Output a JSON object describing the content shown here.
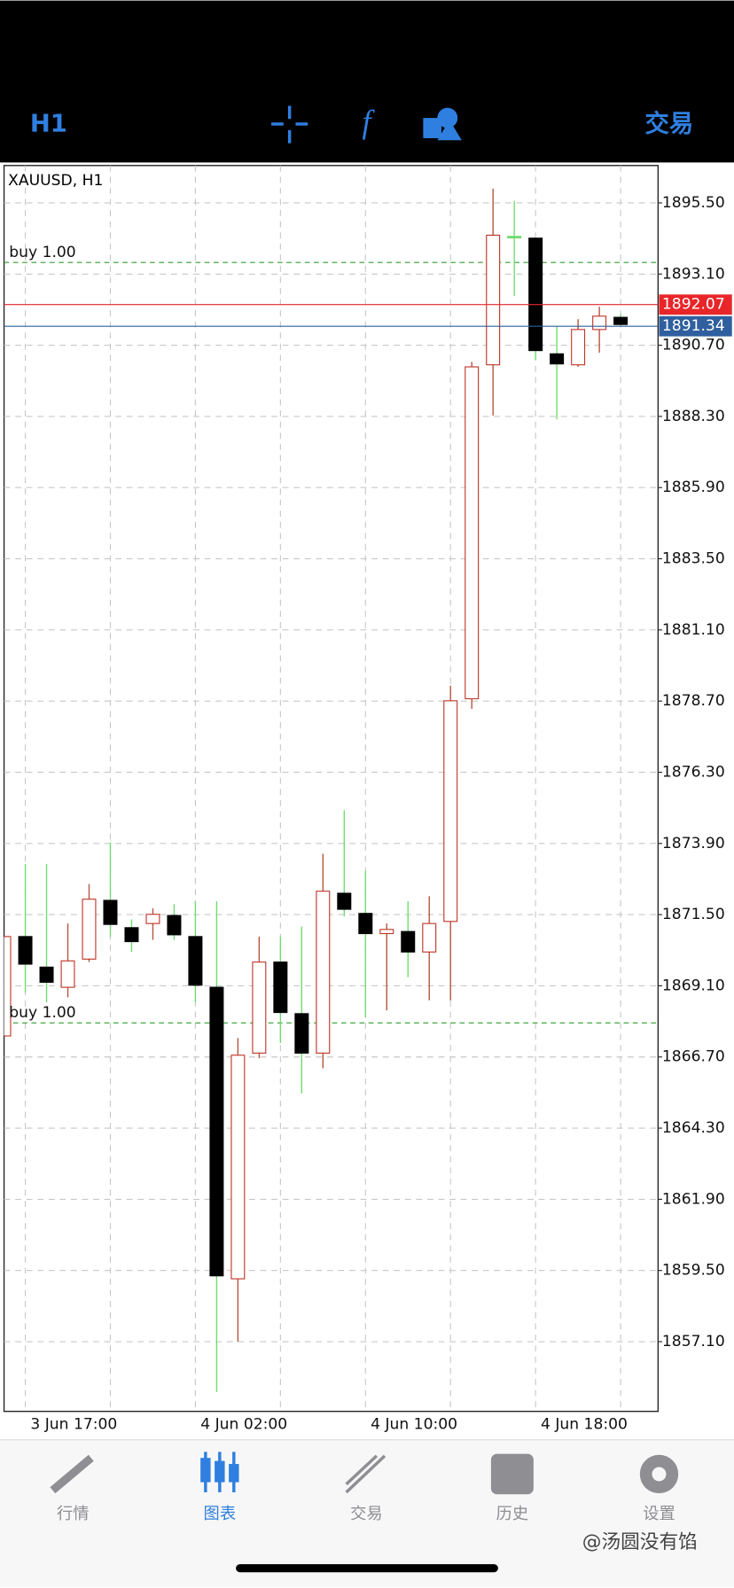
{
  "toolbar": {
    "timeframe": "H1",
    "trade": "交易"
  },
  "chart_data": {
    "type": "candlestick",
    "title": "XAUUSD, H1",
    "categories": [
      null,
      "3 Jun 17:00",
      null,
      null,
      null,
      null,
      null,
      null,
      null,
      "4 Jun 02:00",
      null,
      null,
      null,
      null,
      null,
      null,
      null,
      "4 Jun 10:00",
      null,
      null,
      null,
      null,
      null,
      null,
      null,
      "4 Jun 18:00",
      null,
      null,
      null,
      null
    ],
    "open": [
      1867.41,
      1870.76,
      1869.73,
      1869.05,
      1870.0,
      1871.98,
      1871.06,
      1871.2,
      1871.47,
      1870.76,
      1869.05,
      1859.22,
      1866.83,
      1869.9,
      1868.16,
      1866.83,
      1872.22,
      1871.54,
      1870.86,
      1870.93,
      1870.24,
      1871.27,
      1878.78,
      1890.04,
      1894.37,
      1894.31,
      1890.41,
      1890.04,
      1891.23,
      1891.64
    ],
    "high": [
      1870.76,
      1873.21,
      1873.21,
      1871.2,
      1872.53,
      1873.93,
      1871.34,
      1871.71,
      1871.85,
      1871.95,
      1871.95,
      1867.34,
      1870.76,
      1870.76,
      1871.1,
      1873.55,
      1875.02,
      1872.97,
      1871.2,
      1871.95,
      1872.12,
      1879.22,
      1890.14,
      1895.98,
      1895.57,
      1894.31,
      1891.34,
      1891.58,
      1892.0,
      1891.75
    ],
    "low": [
      1867.41,
      1868.88,
      1868.54,
      1868.71,
      1869.9,
      1870.76,
      1870.24,
      1870.65,
      1870.65,
      1868.54,
      1855.4,
      1857.1,
      1866.66,
      1867.17,
      1865.47,
      1866.32,
      1871.44,
      1868.03,
      1868.27,
      1869.39,
      1868.61,
      1868.61,
      1878.44,
      1888.33,
      1892.36,
      1890.21,
      1888.2,
      1889.97,
      1890.45,
      1891.34
    ],
    "close": [
      1870.76,
      1869.83,
      1869.22,
      1869.94,
      1872.02,
      1871.17,
      1870.59,
      1871.51,
      1870.82,
      1869.12,
      1859.32,
      1866.76,
      1869.9,
      1868.2,
      1866.83,
      1872.29,
      1871.68,
      1870.86,
      1871.0,
      1870.24,
      1871.2,
      1878.71,
      1889.97,
      1894.41,
      1894.37,
      1890.52,
      1890.07,
      1891.23,
      1891.68,
      1891.4
    ],
    "up_color": "#c0392b",
    "down_color": "#000000",
    "up_wick_color": "#b5533c",
    "down_wick_color": "#6fdc6f",
    "ylim": [
      1854.75,
      1896.76
    ],
    "yticks": [
      {
        "value": 1857.1,
        "label": "1857.10"
      },
      {
        "value": 1859.5,
        "label": "1859.50"
      },
      {
        "value": 1861.9,
        "label": "1861.90"
      },
      {
        "value": 1864.3,
        "label": "1864.30"
      },
      {
        "value": 1866.7,
        "label": "1866.70"
      },
      {
        "value": 1869.1,
        "label": "1869.10"
      },
      {
        "value": 1871.5,
        "label": "1871.50"
      },
      {
        "value": 1873.9,
        "label": "1873.90"
      },
      {
        "value": 1876.3,
        "label": "1876.30"
      },
      {
        "value": 1878.7,
        "label": "1878.70"
      },
      {
        "value": 1881.1,
        "label": "1881.10"
      },
      {
        "value": 1883.5,
        "label": "1883.50"
      },
      {
        "value": 1885.9,
        "label": "1885.90"
      },
      {
        "value": 1888.3,
        "label": "1888.30"
      },
      {
        "value": 1890.7,
        "label": "1890.70"
      },
      {
        "value": 1893.1,
        "label": "1893.10"
      },
      {
        "value": 1895.5,
        "label": "1895.50"
      }
    ],
    "grid": true,
    "price_lines": [
      {
        "value": 1892.07,
        "color": "#e8262a"
      },
      {
        "value": 1891.34,
        "color": "#2f5f9e"
      }
    ],
    "order_lines": [
      {
        "label": "buy 1.00",
        "value": 1893.49,
        "color": "#2e9e2e"
      },
      {
        "label": "buy 1.00",
        "value": 1867.85,
        "color": "#2e9e2e"
      }
    ]
  },
  "tab_bar": {
    "tabs": [
      "行情",
      "图表",
      "交易",
      "历史",
      "设置"
    ],
    "active": 1,
    "active_color": "#2f7fe0",
    "color": "#8e8e93"
  },
  "watermark": "@汤圆没有馅"
}
